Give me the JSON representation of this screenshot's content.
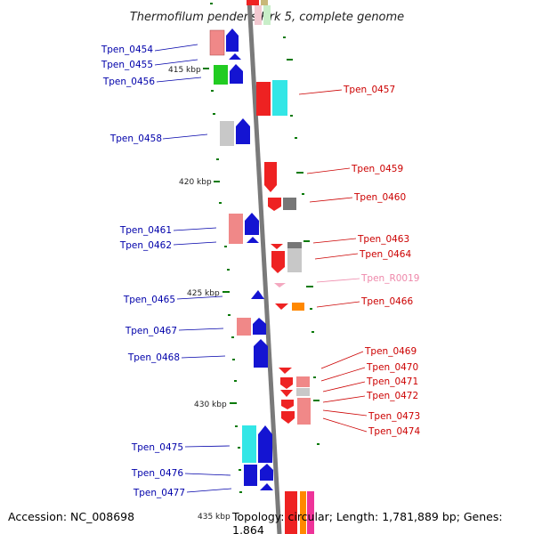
{
  "title": "Thermofilum pendens Hrk 5, complete genome",
  "accession": "Accession: NC_008698",
  "topology": "Topology: circular; Length: 1,781,889 bp; Genes: 1,864",
  "colors": {
    "left_label": "#0000aa",
    "right_label": "#cc0000",
    "rna_label": "#ee88aa",
    "backbone": "#888888",
    "tick": "#0a7a0a"
  },
  "scale_marks": [
    "415 kbp",
    "420 kbp",
    "425 kbp",
    "430 kbp",
    "435 kbp"
  ],
  "left_genes": [
    "Tpen_0454",
    "Tpen_0455",
    "Tpen_0456",
    "Tpen_0458",
    "Tpen_0461",
    "Tpen_0462",
    "Tpen_0465",
    "Tpen_0467",
    "Tpen_0468",
    "Tpen_0475",
    "Tpen_0476",
    "Tpen_0477"
  ],
  "right_genes": [
    "Tpen_0457",
    "Tpen_0459",
    "Tpen_0460",
    "Tpen_0463",
    "Tpen_0464",
    "Tpen_R0019",
    "Tpen_0466",
    "Tpen_0469",
    "Tpen_0470",
    "Tpen_0471",
    "Tpen_0472",
    "Tpen_0473",
    "Tpen_0474"
  ]
}
